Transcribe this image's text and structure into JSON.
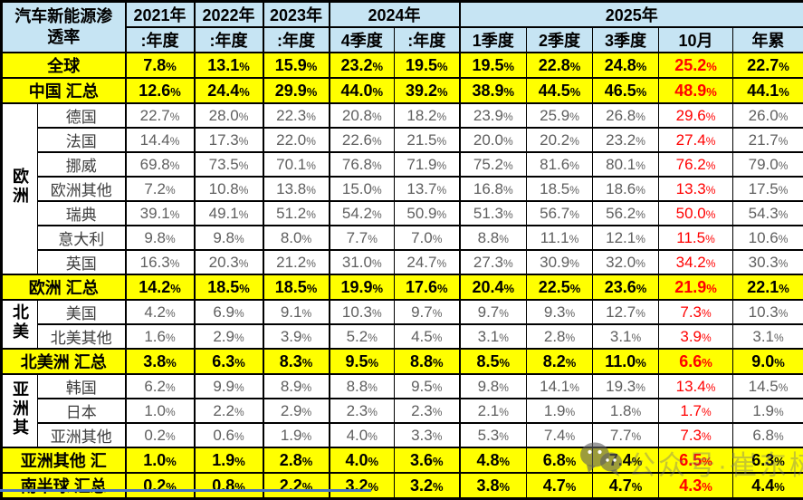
{
  "chart_data": {
    "type": "table",
    "title": "汽车新能源渗透率",
    "year_groups": [
      {
        "label": "2021年",
        "span": 1
      },
      {
        "label": "2022年",
        "span": 1
      },
      {
        "label": "2023年",
        "span": 1
      },
      {
        "label": "2024年",
        "span": 2
      },
      {
        "label": "2025年",
        "span": 5
      }
    ],
    "period_labels": [
      ":年度",
      ":年度",
      ":年度",
      "4季度",
      ":年度",
      "1季度",
      "2季度",
      "3季度",
      "10月",
      "年累"
    ],
    "highlight_column_label": "10月",
    "highlight_column_index": 8,
    "rows": [
      {
        "label": "全球",
        "style": "summary",
        "values": [
          "7.8%",
          "13.1%",
          "15.9%",
          "23.2%",
          "19.5%",
          "19.5%",
          "22.8%",
          "24.8%",
          "25.2%",
          "22.7%"
        ]
      },
      {
        "label": "中国 汇总",
        "style": "summary",
        "values": [
          "12.6%",
          "24.4%",
          "29.9%",
          "44.0%",
          "39.2%",
          "38.9%",
          "44.5%",
          "46.5%",
          "48.9%",
          "44.1%"
        ]
      },
      {
        "label": "德国",
        "style": "country",
        "group": "欧洲",
        "group_span": 7,
        "values": [
          "22.7%",
          "28.0%",
          "22.3%",
          "20.8%",
          "18.2%",
          "23.9%",
          "25.9%",
          "26.8%",
          "29.6%",
          "26.0%"
        ]
      },
      {
        "label": "法国",
        "style": "country",
        "values": [
          "14.4%",
          "17.3%",
          "22.0%",
          "22.6%",
          "21.5%",
          "20.0%",
          "20.2%",
          "23.2%",
          "27.4%",
          "21.7%"
        ]
      },
      {
        "label": "挪威",
        "style": "country",
        "values": [
          "69.8%",
          "73.5%",
          "70.1%",
          "76.8%",
          "71.9%",
          "75.2%",
          "81.6%",
          "80.1%",
          "76.2%",
          "79.0%"
        ]
      },
      {
        "label": "欧洲其他",
        "style": "country",
        "values": [
          "7.2%",
          "10.8%",
          "13.8%",
          "15.0%",
          "13.7%",
          "16.8%",
          "18.5%",
          "18.6%",
          "13.3%",
          "17.5%"
        ]
      },
      {
        "label": "瑞典",
        "style": "country",
        "values": [
          "39.1%",
          "49.1%",
          "51.2%",
          "54.2%",
          "50.9%",
          "51.3%",
          "56.7%",
          "56.2%",
          "50.0%",
          "54.3%"
        ]
      },
      {
        "label": "意大利",
        "style": "country",
        "values": [
          "9.8%",
          "9.8%",
          "8.0%",
          "7.7%",
          "7.0%",
          "8.8%",
          "11.1%",
          "12.1%",
          "11.5%",
          "10.6%"
        ]
      },
      {
        "label": "英国",
        "style": "country",
        "values": [
          "16.3%",
          "20.3%",
          "21.2%",
          "31.0%",
          "24.7%",
          "27.3%",
          "30.9%",
          "32.0%",
          "34.2%",
          "30.3%"
        ]
      },
      {
        "label": "欧洲 汇总",
        "style": "summary",
        "values": [
          "14.2%",
          "18.5%",
          "18.5%",
          "19.9%",
          "17.6%",
          "20.4%",
          "22.5%",
          "23.6%",
          "21.9%",
          "22.1%"
        ]
      },
      {
        "label": "美国",
        "style": "country",
        "group": "北美",
        "group_span": 2,
        "values": [
          "4.2%",
          "6.9%",
          "9.1%",
          "10.3%",
          "9.7%",
          "9.7%",
          "9.3%",
          "12.7%",
          "7.3%",
          "10.3%"
        ]
      },
      {
        "label": "北美其他",
        "style": "country",
        "values": [
          "1.6%",
          "2.9%",
          "3.9%",
          "5.2%",
          "4.5%",
          "3.1%",
          "2.8%",
          "3.1%",
          "3.9%",
          "3.1%"
        ]
      },
      {
        "label": "北美洲 汇总",
        "style": "summary",
        "values": [
          "3.8%",
          "6.3%",
          "8.3%",
          "9.5%",
          "8.8%",
          "8.5%",
          "8.2%",
          "11.0%",
          "6.6%",
          "9.0%"
        ]
      },
      {
        "label": "韩国",
        "style": "country",
        "group": "亚洲其",
        "group_span": 3,
        "values": [
          "6.2%",
          "9.9%",
          "8.9%",
          "8.8%",
          "9.5%",
          "9.8%",
          "14.1%",
          "19.3%",
          "13.4%",
          "14.5%"
        ]
      },
      {
        "label": "日本",
        "style": "country",
        "values": [
          "1.0%",
          "2.2%",
          "2.9%",
          "2.3%",
          "2.3%",
          "2.1%",
          "1.9%",
          "1.8%",
          "1.7%",
          "1.9%"
        ]
      },
      {
        "label": "亚洲其他",
        "style": "country",
        "values": [
          "0.2%",
          "0.6%",
          "1.9%",
          "4.0%",
          "3.3%",
          "5.3%",
          "7.4%",
          "7.7%",
          "7.3%",
          "6.8%"
        ]
      },
      {
        "label": "亚洲其他 汇",
        "style": "summary",
        "values": [
          "1.0%",
          "1.9%",
          "2.8%",
          "4.0%",
          "3.6%",
          "4.8%",
          "6.8%",
          "7.4%",
          "6.5%",
          "6.3%"
        ]
      },
      {
        "label": "南半球 汇总",
        "style": "summary",
        "values": [
          "0.2%",
          "0.8%",
          "2.2%",
          "3.2%",
          "3.2%",
          "3.8%",
          "4.7%",
          "4.7%",
          "4.3%",
          "4.4%"
        ]
      }
    ]
  },
  "watermark": {
    "text": "公众号·崔东树",
    "icon": "wechat-icon"
  },
  "colors": {
    "header_bg": "#C6E4F3",
    "highlight_bg": "#FFFF00",
    "alert_red": "#FF0000",
    "accent_line": "#4472C4"
  }
}
